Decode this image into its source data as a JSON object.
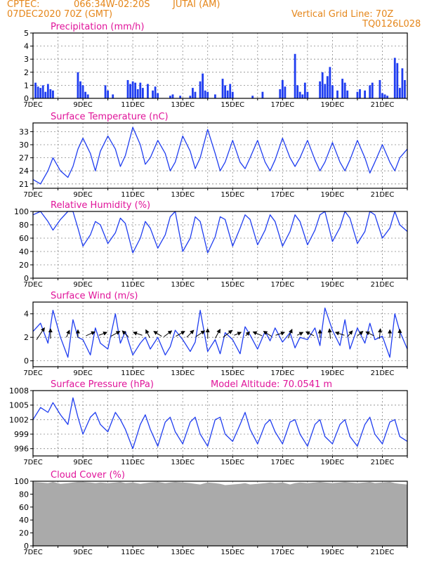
{
  "header": {
    "source": "CPTEC:",
    "coords": "066:34W-02:20S",
    "location": "JUTAI (AM)",
    "init": "07DEC2020 70Z (GMT)",
    "gridline": "Vertical Grid Line: 70Z",
    "code": "TQ0126L028"
  },
  "colors": {
    "header": "#e5861a",
    "title": "#e0149a",
    "series": "#1f3df0",
    "cloud": "#aaaaaa",
    "grid": "#888888"
  },
  "x_labels": [
    "7DEC",
    "9DEC",
    "11DEC",
    "13DEC",
    "15DEC",
    "17DEC",
    "19DEC",
    "21DEC"
  ],
  "chart_data": [
    {
      "type": "bar",
      "title": "Precipitation (mm/h)",
      "ylim": [
        0,
        5
      ],
      "yticks": [
        0,
        1,
        2,
        3,
        4,
        5
      ],
      "xlim": [
        7,
        22
      ],
      "x": [
        7.1,
        7.2,
        7.3,
        7.4,
        7.5,
        7.6,
        7.7,
        7.8,
        8.8,
        8.9,
        9.0,
        9.1,
        9.2,
        9.9,
        10.0,
        10.2,
        10.8,
        10.9,
        11.0,
        11.1,
        11.2,
        11.3,
        11.4,
        11.6,
        11.8,
        11.9,
        12.0,
        12.5,
        12.6,
        12.9,
        13.3,
        13.4,
        13.5,
        13.7,
        13.8,
        13.9,
        14.0,
        14.3,
        14.6,
        14.7,
        14.8,
        14.9,
        15.0,
        15.8,
        16.2,
        16.9,
        17.0,
        17.1,
        17.5,
        17.6,
        17.7,
        17.8,
        17.9,
        18.0,
        18.5,
        18.6,
        18.7,
        18.8,
        18.9,
        19.0,
        19.2,
        19.4,
        19.5,
        19.6,
        20.0,
        20.1,
        20.3,
        20.5,
        20.6,
        20.9,
        21.0,
        21.1,
        21.2,
        21.5,
        21.6,
        21.7,
        21.8,
        21.9
      ],
      "values": [
        1.2,
        0.9,
        0.8,
        1.0,
        0.5,
        1.1,
        0.7,
        0.6,
        2.0,
        1.3,
        1.0,
        0.5,
        0.3,
        1.0,
        0.6,
        0.3,
        1.4,
        1.1,
        1.3,
        1.2,
        0.7,
        1.2,
        0.8,
        1.1,
        0.6,
        0.9,
        0.4,
        0.2,
        0.3,
        0.2,
        0.2,
        0.8,
        0.5,
        1.3,
        1.9,
        0.6,
        0.5,
        0.3,
        1.5,
        1.0,
        0.6,
        1.1,
        0.5,
        0.2,
        0.5,
        0.7,
        1.4,
        0.9,
        3.4,
        1.0,
        0.5,
        0.3,
        1.2,
        0.5,
        1.3,
        2.0,
        1.1,
        1.7,
        2.4,
        1.0,
        0.6,
        1.5,
        1.2,
        0.6,
        0.5,
        0.7,
        0.6,
        1.0,
        1.2,
        1.4,
        0.4,
        0.3,
        0.2,
        3.1,
        2.7,
        0.8,
        2.3,
        1.4
      ]
    },
    {
      "type": "line",
      "title": "Surface Temperature (nC)",
      "ylim": [
        20,
        35
      ],
      "yticks": [
        21,
        24,
        27,
        30,
        33
      ],
      "xlim": [
        7,
        22
      ],
      "x": [
        7.0,
        7.3,
        7.6,
        7.8,
        8.1,
        8.4,
        8.6,
        8.8,
        9.0,
        9.3,
        9.5,
        9.7,
        10.0,
        10.3,
        10.5,
        10.7,
        11.0,
        11.3,
        11.5,
        11.7,
        12.0,
        12.3,
        12.5,
        12.7,
        13.0,
        13.3,
        13.5,
        13.7,
        14.0,
        14.3,
        14.5,
        14.7,
        15.0,
        15.3,
        15.5,
        15.7,
        16.0,
        16.3,
        16.5,
        16.7,
        17.0,
        17.3,
        17.5,
        17.7,
        18.0,
        18.3,
        18.5,
        18.7,
        19.0,
        19.3,
        19.5,
        19.7,
        20.0,
        20.3,
        20.5,
        20.7,
        21.0,
        21.3,
        21.5,
        21.7,
        22.0
      ],
      "values": [
        22.0,
        21.0,
        24.0,
        27.0,
        24.0,
        22.5,
        25.0,
        29.0,
        31.5,
        28.0,
        24.0,
        28.5,
        32.0,
        29.0,
        25.0,
        27.5,
        34.0,
        30.0,
        25.5,
        27.0,
        31.0,
        28.0,
        24.0,
        26.0,
        32.0,
        28.5,
        24.5,
        27.0,
        33.5,
        28.0,
        24.0,
        26.0,
        31.0,
        26.0,
        24.5,
        27.0,
        31.0,
        26.0,
        24.0,
        26.5,
        31.5,
        27.0,
        25.0,
        27.0,
        31.0,
        26.5,
        24.0,
        26.0,
        30.5,
        26.0,
        24.0,
        26.5,
        31.0,
        27.0,
        23.5,
        26.0,
        30.0,
        26.0,
        24.0,
        27.0,
        29.0
      ]
    },
    {
      "type": "line",
      "title": "Relative Humidity (%)",
      "ylim": [
        0,
        100
      ],
      "yticks": [
        0,
        20,
        40,
        60,
        80,
        100
      ],
      "xlim": [
        7,
        22
      ],
      "x": [
        7.0,
        7.3,
        7.6,
        7.8,
        8.1,
        8.4,
        8.6,
        8.8,
        9.0,
        9.3,
        9.5,
        9.7,
        10.0,
        10.3,
        10.5,
        10.7,
        11.0,
        11.3,
        11.5,
        11.7,
        12.0,
        12.3,
        12.5,
        12.7,
        13.0,
        13.3,
        13.5,
        13.7,
        14.0,
        14.3,
        14.5,
        14.7,
        15.0,
        15.3,
        15.5,
        15.7,
        16.0,
        16.3,
        16.5,
        16.7,
        17.0,
        17.3,
        17.5,
        17.7,
        18.0,
        18.3,
        18.5,
        18.7,
        19.0,
        19.3,
        19.5,
        19.7,
        20.0,
        20.3,
        20.5,
        20.7,
        21.0,
        21.3,
        21.5,
        21.7,
        22.0
      ],
      "values": [
        95,
        100,
        85,
        72,
        88,
        100,
        100,
        75,
        48,
        65,
        85,
        80,
        52,
        68,
        90,
        82,
        38,
        60,
        85,
        75,
        45,
        65,
        92,
        100,
        40,
        60,
        92,
        85,
        38,
        62,
        92,
        88,
        48,
        75,
        95,
        88,
        50,
        72,
        95,
        85,
        48,
        70,
        95,
        85,
        50,
        72,
        95,
        100,
        55,
        76,
        100,
        90,
        52,
        70,
        100,
        95,
        60,
        75,
        100,
        80,
        70
      ]
    },
    {
      "type": "line",
      "title": "Surface Wind (m/s)",
      "ylim": [
        -0.5,
        5
      ],
      "yticks": [
        0,
        2,
        4
      ],
      "xlim": [
        7,
        22
      ],
      "x": [
        7.0,
        7.3,
        7.6,
        7.8,
        8.1,
        8.4,
        8.6,
        8.8,
        9.0,
        9.3,
        9.5,
        9.7,
        10.0,
        10.3,
        10.5,
        10.7,
        11.0,
        11.3,
        11.5,
        11.7,
        12.0,
        12.3,
        12.5,
        12.7,
        13.0,
        13.3,
        13.5,
        13.7,
        14.0,
        14.3,
        14.5,
        14.7,
        15.0,
        15.3,
        15.5,
        15.7,
        16.0,
        16.3,
        16.5,
        16.7,
        17.0,
        17.3,
        17.5,
        17.7,
        18.0,
        18.3,
        18.5,
        18.7,
        19.0,
        19.3,
        19.5,
        19.7,
        20.0,
        20.3,
        20.5,
        20.7,
        21.0,
        21.3,
        21.5,
        21.7,
        22.0
      ],
      "values": [
        2.5,
        3.2,
        1.5,
        4.3,
        2.0,
        0.3,
        3.5,
        2.0,
        1.8,
        0.5,
        2.8,
        1.5,
        1.0,
        4.0,
        1.5,
        2.5,
        0.5,
        1.5,
        2.0,
        1.0,
        2.0,
        0.5,
        1.2,
        2.6,
        1.8,
        0.8,
        1.6,
        4.3,
        0.8,
        1.8,
        0.6,
        2.4,
        1.8,
        0.6,
        2.9,
        2.2,
        1.0,
        2.5,
        1.7,
        2.8,
        1.6,
        2.4,
        1.1,
        2.0,
        1.8,
        2.8,
        1.3,
        4.5,
        2.6,
        1.3,
        3.5,
        1.0,
        2.8,
        1.5,
        3.2,
        1.8,
        2.1,
        0.3,
        4.0,
        2.5,
        1.0
      ],
      "arrows_x": [
        7.3,
        7.7,
        8.4,
        8.8,
        9.3,
        9.8,
        10.3,
        10.7,
        11.2,
        11.6,
        12.0,
        12.4,
        12.9,
        13.3,
        13.7,
        14.0,
        14.4,
        14.8,
        15.2,
        15.6,
        16.0,
        16.4,
        16.9,
        17.3,
        17.7,
        18.1,
        18.5,
        18.9,
        19.3,
        19.7,
        20.1,
        20.5,
        20.9,
        21.3,
        21.7
      ],
      "arrows_u": [
        0.8,
        0.0,
        0.3,
        0.0,
        0.9,
        0.8,
        0.9,
        -0.6,
        -0.9,
        -0.4,
        -0.8,
        0.8,
        0.9,
        0.7,
        0.9,
        0.0,
        0.5,
        0.9,
        0.7,
        0.4,
        -0.9,
        -0.8,
        0.9,
        0.4,
        0.6,
        -0.8,
        0.0,
        -0.1,
        -0.9,
        0.5,
        0.6,
        -0.8,
        0.1,
        0.0,
        0.0
      ],
      "arrows_v": [
        1.2,
        1.0,
        0.7,
        0.8,
        0.4,
        0.3,
        0.5,
        0.6,
        0.3,
        0.8,
        0.5,
        0.6,
        0.5,
        0.7,
        0.6,
        1.0,
        0.9,
        0.7,
        0.3,
        0.4,
        0.4,
        0.5,
        0.3,
        0.9,
        0.3,
        0.4,
        0.8,
        1.0,
        0.3,
        0.6,
        0.5,
        0.4,
        1.0,
        0.8,
        0.9
      ]
    },
    {
      "type": "line",
      "title": "Surface Pressure (hPa)",
      "annotation": "Model Altitude: 70.0541 m",
      "ylim": [
        994.5,
        1008
      ],
      "yticks": [
        996,
        999,
        1002,
        1005,
        1008
      ],
      "xlim": [
        7,
        22
      ],
      "x": [
        7.0,
        7.3,
        7.6,
        7.8,
        8.1,
        8.4,
        8.6,
        8.8,
        9.0,
        9.3,
        9.5,
        9.7,
        10.0,
        10.3,
        10.5,
        10.7,
        11.0,
        11.3,
        11.5,
        11.7,
        12.0,
        12.3,
        12.5,
        12.7,
        13.0,
        13.3,
        13.5,
        13.7,
        14.0,
        14.3,
        14.5,
        14.7,
        15.0,
        15.3,
        15.5,
        15.7,
        16.0,
        16.3,
        16.5,
        16.7,
        17.0,
        17.3,
        17.5,
        17.7,
        18.0,
        18.3,
        18.5,
        18.7,
        19.0,
        19.3,
        19.5,
        19.7,
        20.0,
        20.3,
        20.5,
        20.7,
        21.0,
        21.3,
        21.5,
        21.7,
        22.0
      ],
      "values": [
        1002.0,
        1004.5,
        1003.5,
        1005.5,
        1003.0,
        1001.0,
        1006.5,
        1002.5,
        999.0,
        1002.5,
        1003.5,
        1001.0,
        999.5,
        1003.5,
        1002.0,
        1000.0,
        996.0,
        1001.0,
        1003.0,
        1000.0,
        996.5,
        1001.5,
        1002.5,
        999.5,
        997.0,
        1001.5,
        1002.5,
        999.0,
        996.5,
        1002.0,
        1002.5,
        999.0,
        997.5,
        1001.0,
        1003.5,
        1000.0,
        997.0,
        1001.0,
        1002.0,
        999.5,
        997.0,
        1001.5,
        1002.0,
        999.0,
        996.5,
        1001.0,
        1002.0,
        998.5,
        997.0,
        1001.0,
        1002.0,
        998.5,
        996.5,
        1001.0,
        1002.5,
        999.0,
        997.0,
        1001.5,
        1002.0,
        998.5,
        997.5
      ]
    },
    {
      "type": "area",
      "title": "Cloud Cover (%)",
      "ylim": [
        0,
        100
      ],
      "yticks": [
        0,
        20,
        40,
        60,
        80,
        100
      ],
      "xlim": [
        7,
        22
      ],
      "x": [
        7.0,
        7.3,
        7.6,
        7.8,
        8.1,
        8.4,
        8.6,
        8.8,
        9.0,
        9.3,
        9.5,
        9.7,
        10.0,
        10.3,
        10.5,
        10.7,
        11.0,
        11.3,
        11.5,
        11.7,
        12.0,
        12.3,
        12.5,
        12.7,
        13.0,
        13.3,
        13.5,
        13.7,
        14.0,
        14.3,
        14.5,
        14.7,
        15.0,
        15.3,
        15.5,
        15.7,
        16.0,
        16.3,
        16.5,
        16.7,
        17.0,
        17.3,
        17.5,
        17.7,
        18.0,
        18.3,
        18.5,
        18.7,
        19.0,
        19.3,
        19.5,
        19.7,
        20.0,
        20.3,
        20.5,
        20.7,
        21.0,
        21.3,
        21.5,
        21.7,
        22.0
      ],
      "values": [
        99,
        98,
        97,
        99,
        96,
        97,
        98,
        99,
        99,
        98,
        97,
        98,
        97,
        98,
        99,
        97,
        98,
        96,
        97,
        98,
        99,
        97,
        98,
        99,
        98,
        97,
        96,
        95,
        98,
        97,
        96,
        94,
        95,
        96,
        97,
        95,
        96,
        97,
        98,
        97,
        98,
        95,
        97,
        98,
        97,
        98,
        99,
        98,
        97,
        98,
        99,
        98,
        97,
        98,
        99,
        97,
        98,
        99,
        97,
        96,
        95
      ]
    }
  ]
}
